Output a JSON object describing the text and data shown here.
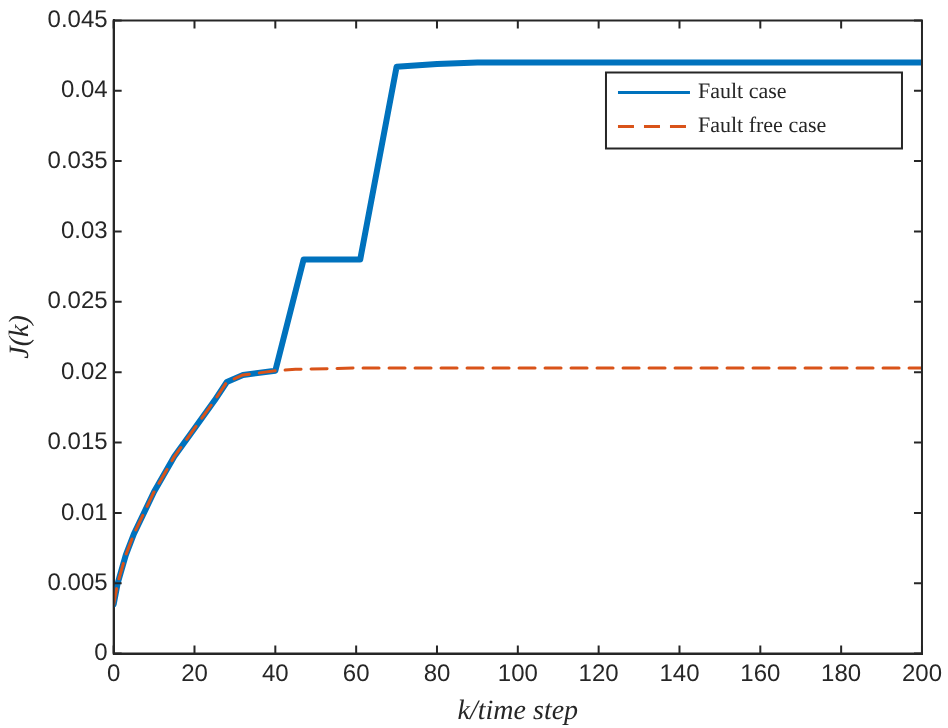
{
  "chart_data": {
    "type": "line",
    "xlabel": "k/time step",
    "ylabel": "J(k)",
    "xlim": [
      0,
      200
    ],
    "ylim": [
      0,
      0.045
    ],
    "xticks": [
      0,
      20,
      40,
      60,
      80,
      100,
      120,
      140,
      160,
      180,
      200
    ],
    "yticks": [
      0,
      0.005,
      0.01,
      0.015,
      0.02,
      0.025,
      0.03,
      0.035,
      0.04,
      0.045
    ],
    "grid": false,
    "legend": "top right",
    "marker": "none",
    "series": [
      {
        "name": "Fault case",
        "color": "#0072bd",
        "line_style": "solid",
        "x": [
          0,
          1,
          3,
          5,
          10,
          15,
          20,
          25,
          28,
          32,
          40,
          47,
          61,
          70,
          80,
          90,
          200
        ],
        "values": [
          0.0035,
          0.005,
          0.007,
          0.0085,
          0.0115,
          0.014,
          0.016,
          0.018,
          0.0193,
          0.0198,
          0.0201,
          0.028,
          0.028,
          0.0417,
          0.0419,
          0.042,
          0.042
        ]
      },
      {
        "name": "Fault free case",
        "color": "#d95319",
        "line_style": "dashed",
        "x": [
          0,
          1,
          3,
          5,
          10,
          15,
          20,
          25,
          28,
          32,
          40,
          45,
          60,
          200
        ],
        "values": [
          0.0035,
          0.005,
          0.007,
          0.0085,
          0.0115,
          0.014,
          0.016,
          0.018,
          0.0193,
          0.0198,
          0.0201,
          0.0202,
          0.0203,
          0.0203
        ]
      }
    ]
  }
}
